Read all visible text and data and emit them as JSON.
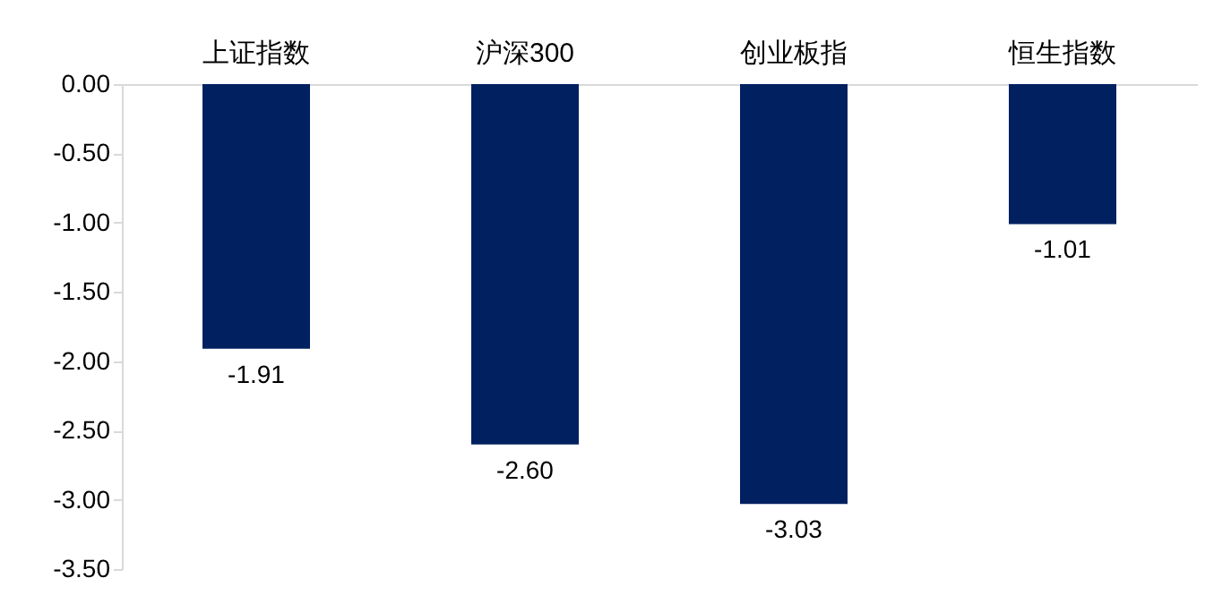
{
  "chart_data": {
    "type": "bar",
    "categories": [
      "上证指数",
      "沪深300",
      "创业板指",
      "恒生指数"
    ],
    "values": [
      -1.91,
      -2.6,
      -3.03,
      -1.01
    ],
    "value_labels": [
      "-1.91",
      "-2.60",
      "-3.03",
      "-1.01"
    ],
    "color": "#002060",
    "ylim": [
      -3.5,
      0
    ],
    "yticks": [
      {
        "value": 0,
        "label": "0.00"
      },
      {
        "value": -0.5,
        "label": "-0.50"
      },
      {
        "value": -1,
        "label": "-1.00"
      },
      {
        "value": -1.5,
        "label": "-1.50"
      },
      {
        "value": -2,
        "label": "-2.00"
      },
      {
        "value": -2.5,
        "label": "-2.50"
      },
      {
        "value": -3,
        "label": "-3.00"
      },
      {
        "value": -3.5,
        "label": "-3.50"
      }
    ],
    "grid": false
  }
}
